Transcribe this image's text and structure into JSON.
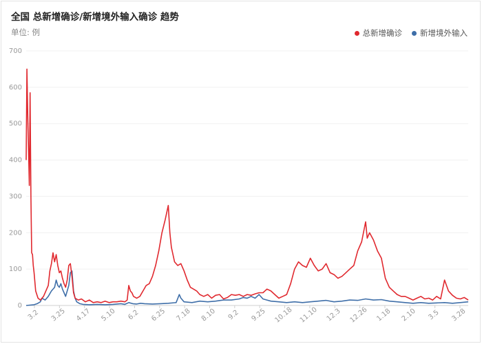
{
  "header": {
    "title": "全国 总新增确诊/新增境外输入确诊 趋势",
    "unit": "单位: 例"
  },
  "colors": {
    "total": "#e0282e",
    "imported": "#3e6ea8",
    "grid": "#f0f0f0"
  },
  "chart_data": {
    "type": "line",
    "title": "全国 总新增确诊/新增境外输入确诊 趋势",
    "ylabel": "单位: 例",
    "ylim": [
      0,
      700
    ],
    "yticks": [
      "0",
      "100",
      "200",
      "300",
      "400",
      "500",
      "600",
      "700"
    ],
    "x_tick_labels": [
      "3.2",
      "3.25",
      "4.17",
      "5.10",
      "6.2",
      "6.25",
      "7.18",
      "8.10",
      "9.2",
      "9.25",
      "10.18",
      "11.10",
      "12.3",
      "12.26",
      "1.18",
      "2.10",
      "3.5",
      "3.28"
    ],
    "legend_position": "top-right",
    "grid": true,
    "series": [
      {
        "name": "总新增确诊",
        "color": "#e0282e",
        "points": [
          [
            0,
            400
          ],
          [
            1,
            650
          ],
          [
            2,
            520
          ],
          [
            3,
            430
          ],
          [
            4,
            330
          ],
          [
            5,
            585
          ],
          [
            6,
            300
          ],
          [
            7,
            145
          ],
          [
            8,
            140
          ],
          [
            9,
            110
          ],
          [
            10,
            90
          ],
          [
            12,
            40
          ],
          [
            15,
            20
          ],
          [
            18,
            15
          ],
          [
            22,
            25
          ],
          [
            28,
            55
          ],
          [
            30,
            95
          ],
          [
            32,
            115
          ],
          [
            34,
            145
          ],
          [
            36,
            120
          ],
          [
            38,
            140
          ],
          [
            40,
            110
          ],
          [
            42,
            90
          ],
          [
            44,
            95
          ],
          [
            46,
            75
          ],
          [
            48,
            60
          ],
          [
            50,
            50
          ],
          [
            52,
            70
          ],
          [
            54,
            110
          ],
          [
            56,
            115
          ],
          [
            58,
            80
          ],
          [
            60,
            35
          ],
          [
            62,
            20
          ],
          [
            66,
            15
          ],
          [
            70,
            18
          ],
          [
            75,
            10
          ],
          [
            80,
            15
          ],
          [
            85,
            8
          ],
          [
            90,
            10
          ],
          [
            95,
            8
          ],
          [
            100,
            12
          ],
          [
            105,
            8
          ],
          [
            110,
            10
          ],
          [
            115,
            10
          ],
          [
            120,
            12
          ],
          [
            125,
            10
          ],
          [
            128,
            15
          ],
          [
            130,
            55
          ],
          [
            132,
            40
          ],
          [
            134,
            35
          ],
          [
            136,
            25
          ],
          [
            140,
            20
          ],
          [
            144,
            25
          ],
          [
            148,
            40
          ],
          [
            152,
            55
          ],
          [
            156,
            60
          ],
          [
            160,
            80
          ],
          [
            164,
            110
          ],
          [
            168,
            150
          ],
          [
            172,
            200
          ],
          [
            176,
            235
          ],
          [
            180,
            275
          ],
          [
            182,
            200
          ],
          [
            184,
            160
          ],
          [
            186,
            140
          ],
          [
            188,
            120
          ],
          [
            192,
            110
          ],
          [
            196,
            115
          ],
          [
            200,
            95
          ],
          [
            204,
            70
          ],
          [
            208,
            50
          ],
          [
            212,
            45
          ],
          [
            216,
            40
          ],
          [
            220,
            30
          ],
          [
            225,
            25
          ],
          [
            230,
            30
          ],
          [
            235,
            20
          ],
          [
            240,
            28
          ],
          [
            245,
            30
          ],
          [
            250,
            18
          ],
          [
            255,
            22
          ],
          [
            260,
            30
          ],
          [
            265,
            28
          ],
          [
            270,
            30
          ],
          [
            275,
            25
          ],
          [
            280,
            30
          ],
          [
            285,
            28
          ],
          [
            290,
            32
          ],
          [
            295,
            35
          ],
          [
            300,
            35
          ],
          [
            305,
            45
          ],
          [
            310,
            40
          ],
          [
            315,
            30
          ],
          [
            320,
            20
          ],
          [
            325,
            25
          ],
          [
            330,
            30
          ],
          [
            335,
            60
          ],
          [
            340,
            100
          ],
          [
            345,
            120
          ],
          [
            350,
            110
          ],
          [
            355,
            105
          ],
          [
            360,
            130
          ],
          [
            365,
            110
          ],
          [
            370,
            95
          ],
          [
            375,
            100
          ],
          [
            380,
            115
          ],
          [
            385,
            90
          ],
          [
            390,
            85
          ],
          [
            395,
            75
          ],
          [
            400,
            80
          ],
          [
            405,
            90
          ],
          [
            410,
            100
          ],
          [
            415,
            110
          ],
          [
            420,
            150
          ],
          [
            425,
            175
          ],
          [
            430,
            230
          ],
          [
            432,
            185
          ],
          [
            435,
            200
          ],
          [
            440,
            180
          ],
          [
            445,
            150
          ],
          [
            450,
            130
          ],
          [
            455,
            75
          ],
          [
            460,
            50
          ],
          [
            465,
            40
          ],
          [
            470,
            30
          ],
          [
            475,
            25
          ],
          [
            480,
            25
          ],
          [
            485,
            20
          ],
          [
            490,
            15
          ],
          [
            495,
            20
          ],
          [
            500,
            25
          ],
          [
            505,
            18
          ],
          [
            510,
            20
          ],
          [
            515,
            15
          ],
          [
            520,
            25
          ],
          [
            525,
            18
          ],
          [
            530,
            70
          ],
          [
            535,
            40
          ],
          [
            540,
            28
          ],
          [
            545,
            20
          ],
          [
            550,
            18
          ],
          [
            555,
            22
          ],
          [
            560,
            15
          ]
        ]
      },
      {
        "name": "新增境外输入",
        "color": "#3e6ea8",
        "points": [
          [
            0,
            0
          ],
          [
            10,
            2
          ],
          [
            14,
            5
          ],
          [
            18,
            10
          ],
          [
            20,
            20
          ],
          [
            24,
            15
          ],
          [
            28,
            25
          ],
          [
            32,
            40
          ],
          [
            36,
            50
          ],
          [
            38,
            70
          ],
          [
            40,
            55
          ],
          [
            42,
            50
          ],
          [
            44,
            60
          ],
          [
            46,
            45
          ],
          [
            48,
            35
          ],
          [
            50,
            25
          ],
          [
            52,
            40
          ],
          [
            54,
            55
          ],
          [
            56,
            90
          ],
          [
            58,
            95
          ],
          [
            60,
            40
          ],
          [
            62,
            20
          ],
          [
            64,
            10
          ],
          [
            68,
            5
          ],
          [
            72,
            3
          ],
          [
            80,
            2
          ],
          [
            90,
            3
          ],
          [
            100,
            2
          ],
          [
            110,
            3
          ],
          [
            120,
            5
          ],
          [
            125,
            3
          ],
          [
            130,
            8
          ],
          [
            135,
            5
          ],
          [
            140,
            4
          ],
          [
            145,
            6
          ],
          [
            150,
            5
          ],
          [
            160,
            4
          ],
          [
            170,
            5
          ],
          [
            180,
            6
          ],
          [
            190,
            8
          ],
          [
            194,
            30
          ],
          [
            196,
            20
          ],
          [
            200,
            10
          ],
          [
            210,
            8
          ],
          [
            220,
            12
          ],
          [
            230,
            10
          ],
          [
            240,
            12
          ],
          [
            250,
            15
          ],
          [
            260,
            15
          ],
          [
            270,
            18
          ],
          [
            275,
            22
          ],
          [
            280,
            20
          ],
          [
            285,
            25
          ],
          [
            290,
            20
          ],
          [
            295,
            30
          ],
          [
            300,
            18
          ],
          [
            305,
            15
          ],
          [
            310,
            12
          ],
          [
            320,
            10
          ],
          [
            330,
            8
          ],
          [
            340,
            10
          ],
          [
            350,
            8
          ],
          [
            360,
            10
          ],
          [
            370,
            12
          ],
          [
            380,
            14
          ],
          [
            390,
            10
          ],
          [
            400,
            12
          ],
          [
            410,
            15
          ],
          [
            420,
            14
          ],
          [
            430,
            18
          ],
          [
            440,
            15
          ],
          [
            450,
            16
          ],
          [
            460,
            12
          ],
          [
            470,
            10
          ],
          [
            480,
            8
          ],
          [
            490,
            6
          ],
          [
            500,
            8
          ],
          [
            510,
            6
          ],
          [
            520,
            7
          ],
          [
            530,
            8
          ],
          [
            540,
            6
          ],
          [
            550,
            8
          ],
          [
            560,
            10
          ]
        ]
      }
    ]
  }
}
